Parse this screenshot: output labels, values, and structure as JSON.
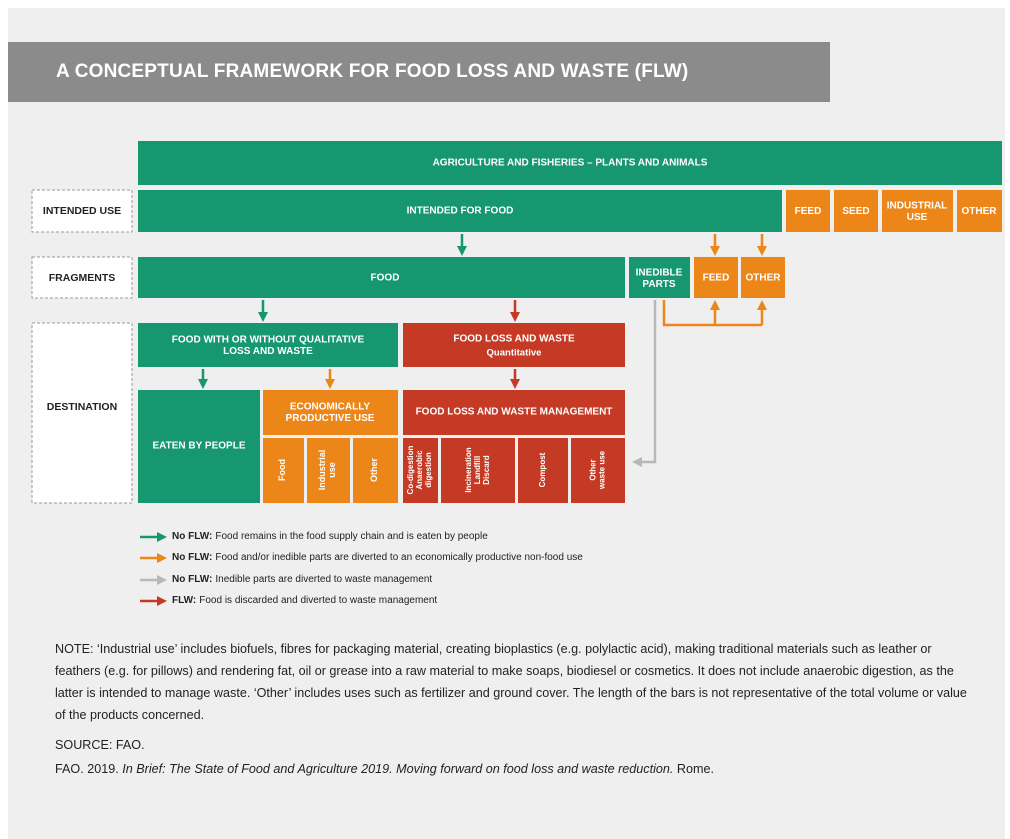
{
  "title": "A CONCEPTUAL FRAMEWORK FOR FOOD LOSS AND WASTE (FLW)",
  "stages": [
    "INTENDED USE",
    "FRAGMENTS",
    "DESTINATION"
  ],
  "source_box": "AGRICULTURE AND FISHERIES – PLANTS AND ANIMALS",
  "intended_use": {
    "food": "INTENDED FOR FOOD",
    "other_uses": [
      [
        "FEED"
      ],
      [
        "SEED"
      ],
      [
        "INDUSTRIAL",
        "USE"
      ],
      [
        "OTHER"
      ]
    ]
  },
  "fragments": {
    "food": "FOOD",
    "inedible": [
      "INEDIBLE",
      "PARTS"
    ],
    "inedible_uses": [
      "FEED",
      "OTHER"
    ]
  },
  "destination": {
    "qualitative": [
      "FOOD WITH OR WITHOUT QUALITATIVE",
      "LOSS AND WASTE"
    ],
    "quantitative": {
      "title": "FOOD LOSS AND WASTE",
      "subtitle": "Quantitative"
    },
    "eaten": "EATEN BY PEOPLE",
    "productive": {
      "title": [
        "ECONOMICALLY",
        "PRODUCTIVE USE"
      ],
      "items": [
        [
          "Food"
        ],
        [
          "Industrial",
          "use"
        ],
        [
          "Other"
        ]
      ]
    },
    "management": {
      "title": "FOOD LOSS AND WASTE MANAGEMENT",
      "items": [
        [
          "Co-digestion",
          "Anaerobic",
          "digestion"
        ],
        [
          "Incineration",
          "Landfill",
          "Discard"
        ],
        [
          "Compost"
        ],
        [
          "Other",
          "waste use"
        ]
      ]
    }
  },
  "legend": [
    {
      "label": "No FLW:",
      "text": "Food remains in the food supply chain and is eaten by people"
    },
    {
      "label": "No FLW:",
      "text": "Food and/or inedible parts are diverted to an economically productive non-food use"
    },
    {
      "label": "No FLW:",
      "text": "Inedible parts are diverted to waste management"
    },
    {
      "label": "FLW:",
      "text": "Food is discarded and diverted to waste management"
    }
  ],
  "note": "NOTE: ‘Industrial use’ includes biofuels, fibres for packaging material, creating bioplastics (e.g. polylactic acid), making traditional materials such as leather or feathers (e.g. for pillows) and rendering fat, oil or grease into a raw material to make soaps, biodiesel or cosmetics. It does not include anaerobic digestion, as the latter is intended to manage waste. ‘Other’ includes uses such as fertilizer and ground cover. The length of the bars is not representative of the total volume or value of the products concerned.",
  "source": "SOURCE: FAO.",
  "citation": {
    "before": "FAO. 2019.",
    "title": "In Brief: The State of Food and Agriculture 2019. Moving forward on food loss and waste reduction.",
    "after": "Rome."
  }
}
